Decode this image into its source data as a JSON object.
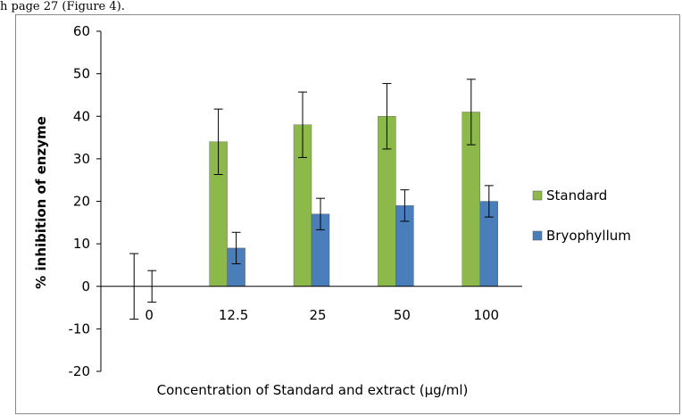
{
  "caption_fragment": "h page 27 (Figure 4).",
  "chart_data": {
    "type": "bar",
    "categories": [
      "0",
      "12.5",
      "25",
      "50",
      "100"
    ],
    "series": [
      {
        "name": "Standard",
        "color": "#8db84a",
        "values": [
          0,
          34,
          38,
          40,
          41
        ],
        "errors": [
          7.7,
          7.7,
          7.7,
          7.7,
          7.7
        ]
      },
      {
        "name": "Bryophyllum",
        "color": "#4a7ebb",
        "values": [
          0,
          9,
          17,
          19,
          20
        ],
        "errors": [
          3.7,
          3.7,
          3.7,
          3.7,
          3.7
        ]
      }
    ],
    "xlabel": "Concentration of Standard and extract (µg/ml)",
    "ylabel": "% inhibition of enzyme",
    "ylim": [
      -20,
      60
    ],
    "yticks": [
      "-20",
      "-10",
      "0",
      "10",
      "20",
      "30",
      "40",
      "50",
      "60"
    ],
    "legend_position": "right",
    "grid": false
  }
}
